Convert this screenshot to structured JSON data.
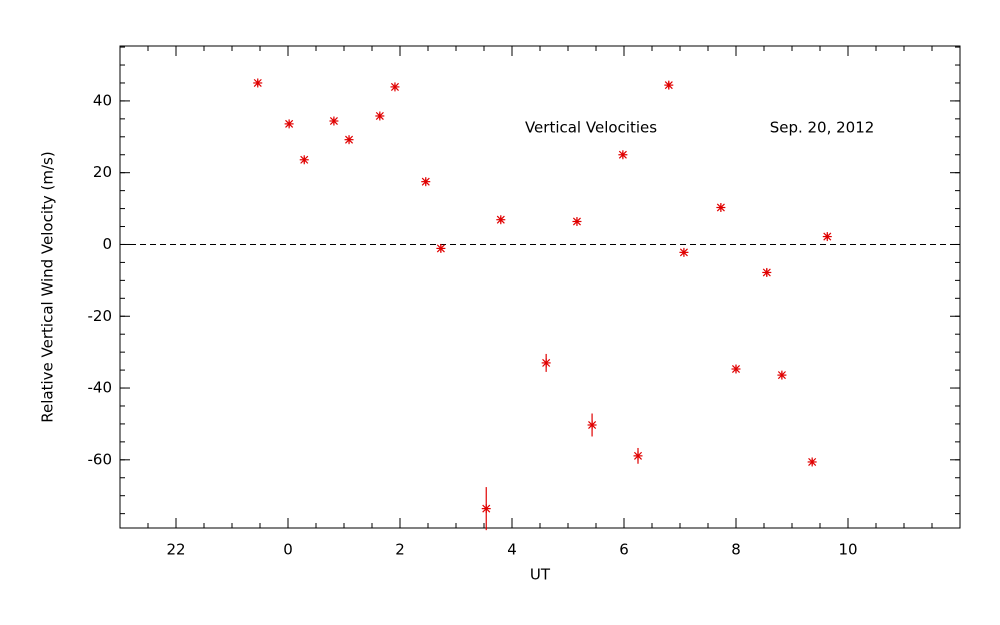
{
  "chart_data": {
    "type": "scatter",
    "xlabel": "UT",
    "ylabel": "Relative Vertical Wind Velocity (m/s)",
    "annotations": [
      "Vertical Velocities",
      "Sep. 20, 2012"
    ],
    "xlim": [
      -3,
      12
    ],
    "ylim": [
      -79,
      55.3
    ],
    "xticks": [
      {
        "value": -2,
        "label": "22"
      },
      0,
      2,
      4,
      6,
      8,
      10
    ],
    "yticks": [
      -60,
      -40,
      -20,
      0,
      20,
      40
    ],
    "xminor": 0.5,
    "yminor": 5,
    "reference_line": 0,
    "series": [
      {
        "color": "#e00000",
        "x": [
          -0.54,
          0.02,
          0.29,
          0.82,
          1.09,
          1.64,
          1.91,
          2.46,
          2.73,
          3.54,
          3.8,
          4.61,
          5.16,
          5.43,
          5.98,
          6.25,
          6.8,
          7.07,
          7.73,
          8.0,
          8.55,
          8.82,
          9.36,
          9.63
        ],
        "values": [
          45,
          33.6,
          23.6,
          34.4,
          29.2,
          35.8,
          43.9,
          17.5,
          -1.1,
          -73.6,
          6.9,
          -33,
          6.4,
          -50.3,
          25,
          -58.9,
          44.4,
          -2.2,
          10.3,
          -34.7,
          -7.8,
          -36.4,
          -60.6,
          2.2
        ],
        "errors": [
          0.8,
          0.8,
          0.8,
          0.8,
          0.8,
          0.8,
          0.8,
          0.8,
          1,
          6,
          0.8,
          2.5,
          0.8,
          3.2,
          0.8,
          2.2,
          1,
          0.8,
          0.8,
          1,
          1,
          1,
          0.8,
          0.8
        ]
      }
    ]
  }
}
